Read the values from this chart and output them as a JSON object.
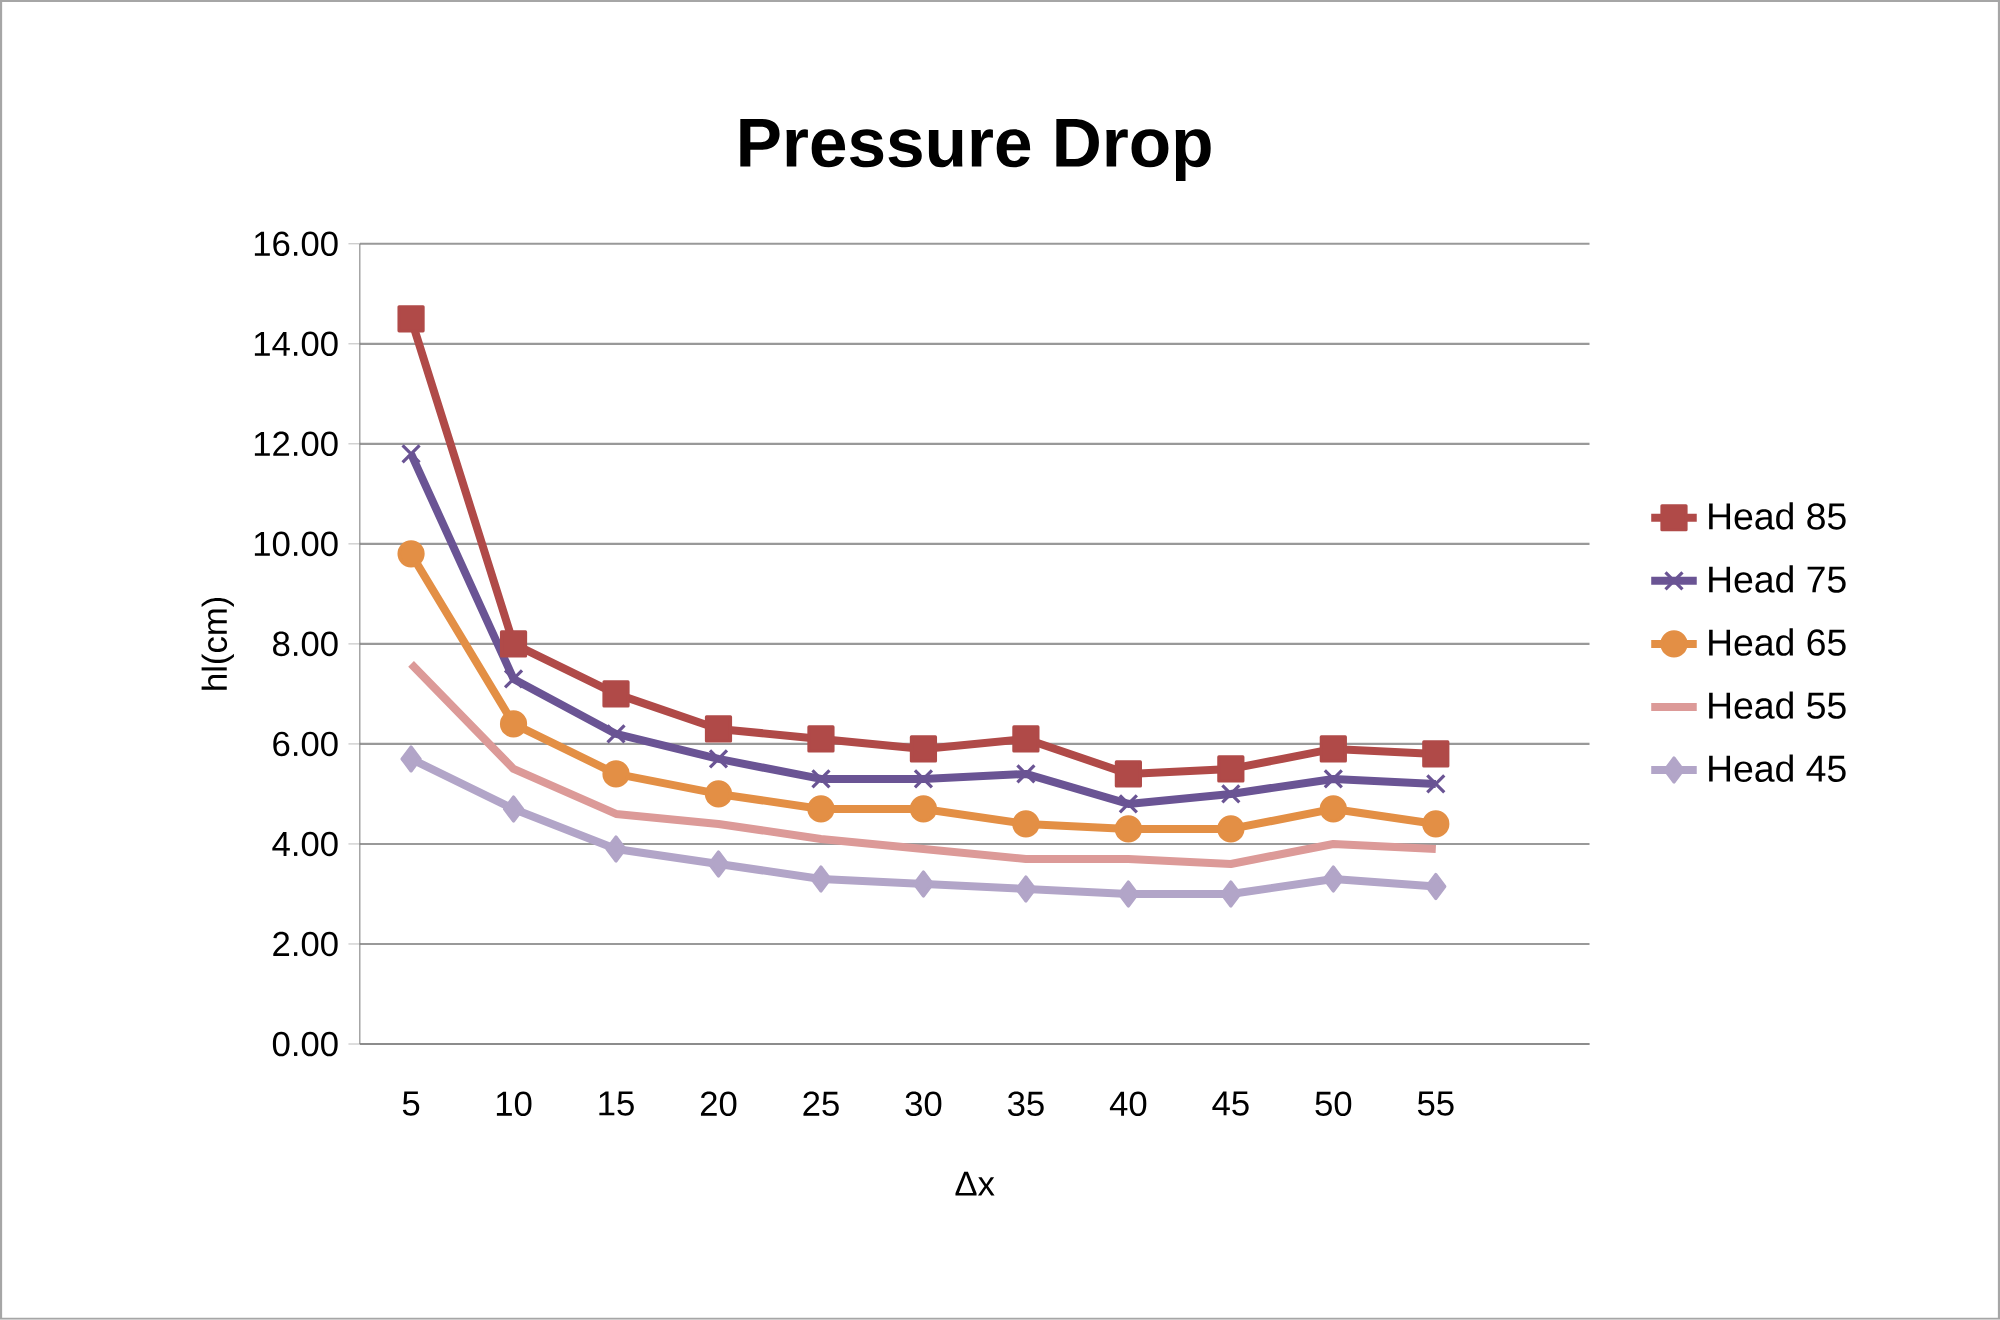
{
  "chart_data": {
    "type": "line",
    "title": "Pressure Drop",
    "xlabel": "Δx",
    "ylabel": "hl(cm)",
    "categories": [
      "5",
      "10",
      "15",
      "20",
      "25",
      "30",
      "35",
      "40",
      "45",
      "50",
      "55"
    ],
    "series": [
      {
        "name": "Head 85",
        "color": "#b04a48",
        "marker": "square",
        "values": [
          14.5,
          8.0,
          7.0,
          6.3,
          6.1,
          5.9,
          6.1,
          5.4,
          5.5,
          5.9,
          5.8
        ]
      },
      {
        "name": "Head 75",
        "color": "#6a5494",
        "marker": "cross",
        "values": [
          11.8,
          7.3,
          6.2,
          5.7,
          5.3,
          5.3,
          5.4,
          4.8,
          5.0,
          5.3,
          5.2
        ]
      },
      {
        "name": "Head 65",
        "color": "#e38f45",
        "marker": "circle",
        "values": [
          9.8,
          6.4,
          5.4,
          5.0,
          4.7,
          4.7,
          4.4,
          4.3,
          4.3,
          4.7,
          4.4
        ]
      },
      {
        "name": "Head 55",
        "color": "#dc9a98",
        "marker": "none",
        "values": [
          7.6,
          5.5,
          4.6,
          4.4,
          4.1,
          3.9,
          3.7,
          3.7,
          3.6,
          4.0,
          3.9
        ]
      },
      {
        "name": "Head 45",
        "color": "#b2a5c8",
        "marker": "diamond",
        "values": [
          5.7,
          4.7,
          3.9,
          3.6,
          3.3,
          3.2,
          3.1,
          3.0,
          3.0,
          3.3,
          3.15
        ]
      }
    ],
    "ylim": [
      0,
      16
    ],
    "yticks": [
      {
        "value": 0,
        "label": "0.00"
      },
      {
        "value": 2,
        "label": "2.00"
      },
      {
        "value": 4,
        "label": "4.00"
      },
      {
        "value": 6,
        "label": "6.00"
      },
      {
        "value": 8,
        "label": "8.00"
      },
      {
        "value": 10,
        "label": "10.00"
      },
      {
        "value": 12,
        "label": "12.00"
      },
      {
        "value": 14,
        "label": "14.00"
      },
      {
        "value": 16,
        "label": "16.00"
      }
    ],
    "grid": "y",
    "legend": "right",
    "line_style": "solid"
  }
}
